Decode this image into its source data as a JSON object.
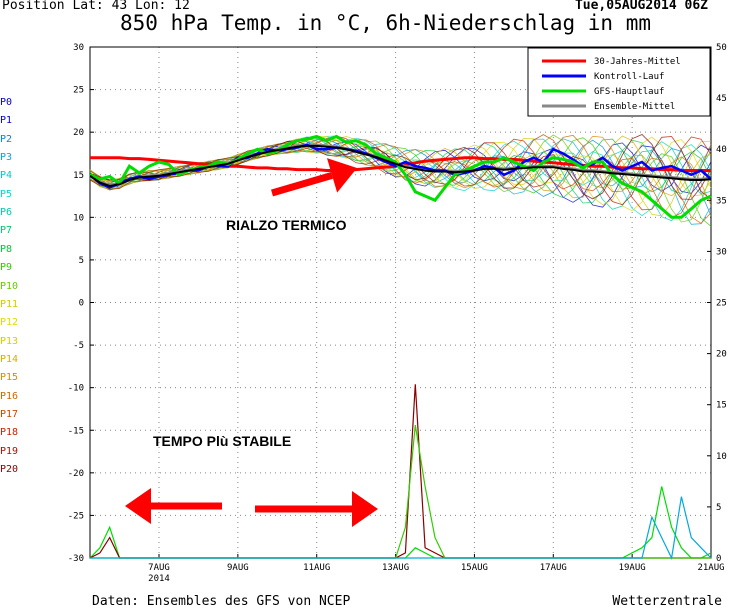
{
  "header": {
    "position": "Position   Lat: 43 Lon: 12",
    "datetime": "Tue,05AUG2014  06Z",
    "title": "850 hPa Temp. in °C, 6h-Niederschlag in mm"
  },
  "footer": {
    "left": "Daten: Ensembles des GFS von NCEP",
    "right": "Wetterzentrale"
  },
  "member_labels": [
    {
      "text": "P0",
      "color": "#0000cc"
    },
    {
      "text": "P1",
      "color": "#0000dd"
    },
    {
      "text": "P2",
      "color": "#0088dd"
    },
    {
      "text": "P3",
      "color": "#00aadd"
    },
    {
      "text": "P4",
      "color": "#00cccc"
    },
    {
      "text": "P5",
      "color": "#00ddcc"
    },
    {
      "text": "P6",
      "color": "#00ccaa"
    },
    {
      "text": "P7",
      "color": "#00cc66"
    },
    {
      "text": "P8",
      "color": "#00cc33"
    },
    {
      "text": "P9",
      "color": "#33cc00"
    },
    {
      "text": "P10",
      "color": "#66cc00"
    },
    {
      "text": "P11",
      "color": "#cccc00"
    },
    {
      "text": "P12",
      "color": "#dddd00"
    },
    {
      "text": "P13",
      "color": "#ddcc00"
    },
    {
      "text": "P14",
      "color": "#ddaa00"
    },
    {
      "text": "P15",
      "color": "#dd8800"
    },
    {
      "text": "P16",
      "color": "#cc6600"
    },
    {
      "text": "P17",
      "color": "#cc4400"
    },
    {
      "text": "P18",
      "color": "#cc2200"
    },
    {
      "text": "P19",
      "color": "#aa1100"
    },
    {
      "text": "P20",
      "color": "#880000"
    }
  ],
  "annotations": {
    "rialzo": "RIALZO TERMICO",
    "stabile": "TEMPO Plù STABILE",
    "arrow_color": "#ff0000"
  },
  "chart_data": {
    "type": "line",
    "x_ticks": [
      "7AUG",
      "9AUG",
      "11AUG",
      "13AUG",
      "15AUG",
      "17AUG",
      "19AUG",
      "21AUG"
    ],
    "x_year_label": "2014",
    "y_left_range": [
      -30,
      30
    ],
    "y_left_ticks": [
      30,
      25,
      20,
      15,
      10,
      5,
      0,
      -5,
      -10,
      -15,
      -20,
      -25,
      -30
    ],
    "y_right_range": [
      0,
      50
    ],
    "y_right_ticks": [
      50,
      45,
      40,
      35,
      30,
      25,
      20,
      15,
      10,
      5,
      0
    ],
    "grid": true,
    "legend_position": "top-right",
    "x_days": [
      5.25,
      5.5,
      5.75,
      6,
      6.25,
      6.5,
      6.75,
      7,
      7.25,
      7.5,
      7.75,
      8,
      8.25,
      8.5,
      8.75,
      9,
      9.25,
      9.5,
      9.75,
      10,
      10.25,
      10.5,
      10.75,
      11,
      11.25,
      11.5,
      11.75,
      12,
      12.25,
      12.5,
      12.75,
      13,
      13.25,
      13.5,
      13.75,
      14,
      14.25,
      14.5,
      14.75,
      15,
      15.25,
      15.5,
      15.75,
      16,
      16.25,
      16.5,
      16.75,
      17,
      17.25,
      17.5,
      17.75,
      18,
      18.25,
      18.5,
      18.75,
      19,
      19.25,
      19.5,
      19.75,
      20,
      20.25,
      20.5,
      20.75,
      21
    ],
    "temperature_series": [
      {
        "name": "30-Jahres-Mittel",
        "color": "#ff0000",
        "width": 3,
        "values": [
          17,
          17,
          17,
          17,
          16.9,
          16.9,
          16.8,
          16.7,
          16.6,
          16.5,
          16.4,
          16.3,
          16.2,
          16.1,
          16,
          16,
          15.9,
          15.8,
          15.8,
          15.7,
          15.7,
          15.6,
          15.6,
          15.6,
          15.5,
          15.5,
          15.5,
          15.6,
          15.7,
          15.8,
          15.9,
          16,
          16.2,
          16.4,
          16.6,
          16.7,
          16.8,
          16.9,
          17,
          17,
          16.9,
          16.9,
          16.8,
          16.8,
          16.7,
          16.6,
          16.5,
          16.4,
          16.3,
          16.2,
          16.1,
          16,
          16,
          15.9,
          15.8,
          15.8,
          15.7,
          15.7,
          15.6,
          15.6,
          15.5,
          15.5,
          15.5,
          15.5
        ]
      },
      {
        "name": "Kontroll-Lauf",
        "color": "#0000ff",
        "width": 2.5,
        "values": [
          15,
          14,
          13.5,
          14,
          14.5,
          14.8,
          14.5,
          14.8,
          15,
          15.2,
          15.5,
          15.5,
          16,
          16,
          16,
          17,
          17,
          17.5,
          18,
          17.8,
          18,
          18.2,
          18.5,
          18,
          18,
          18.2,
          18,
          17.8,
          17.5,
          17,
          16.5,
          16,
          16.5,
          16,
          15.8,
          15.5,
          15.5,
          15,
          15.2,
          15.5,
          16,
          15.8,
          15,
          15.5,
          16.5,
          17,
          16.5,
          18,
          17.5,
          16.8,
          16,
          16.2,
          17,
          16,
          15.5,
          16,
          16.5,
          15.5,
          15.8,
          16,
          15.5,
          15,
          15.5,
          14.5
        ]
      },
      {
        "name": "GFS-Hauptlauf",
        "color": "#00dd00",
        "width": 3,
        "values": [
          15,
          14.5,
          14.8,
          14,
          16,
          15.2,
          16,
          16.5,
          16.2,
          15,
          15.5,
          15.8,
          16,
          16.5,
          16.2,
          16.8,
          17.5,
          18,
          17.5,
          17.8,
          18.5,
          19,
          19.2,
          19.5,
          19,
          19.5,
          18.8,
          19,
          18.5,
          17.5,
          17,
          16.5,
          15,
          13,
          12.5,
          12,
          13.5,
          15,
          15.5,
          16,
          16.5,
          16.5,
          17,
          16.5,
          16,
          15.5,
          16.5,
          17,
          16.8,
          16.5,
          15.8,
          16.5,
          16.5,
          15,
          14,
          13.5,
          13,
          12,
          11,
          10,
          10,
          11,
          12,
          12.5
        ]
      },
      {
        "name": "Ensemble-Mittel",
        "color": "#888888",
        "width": 2.5,
        "values": [
          15,
          14.2,
          13.8,
          14,
          14.5,
          14.8,
          14.9,
          15,
          15.2,
          15.4,
          15.6,
          15.8,
          16,
          16.2,
          16.4,
          16.8,
          17.2,
          17.5,
          17.8,
          18,
          18.2,
          18.4,
          18.5,
          18.5,
          18.4,
          18.3,
          18.1,
          17.8,
          17.5,
          17.2,
          16.8,
          16.4,
          16,
          15.8,
          15.6,
          15.5,
          15.5,
          15.4,
          15.5,
          15.6,
          15.8,
          15.8,
          15.7,
          15.8,
          15.9,
          16,
          16,
          16,
          15.8,
          15.7,
          15.5,
          15.5,
          15.4,
          15.3,
          15.2,
          15.1,
          15,
          14.9,
          14.8,
          14.7,
          14.6,
          14.5,
          14.5,
          14.6
        ]
      }
    ],
    "precipitation_series": [
      {
        "name": "GFS-Hauptlauf",
        "color": "#00dd00",
        "values": [
          0,
          1,
          3,
          0,
          0,
          0,
          0,
          0,
          0,
          0,
          0,
          0,
          0,
          0,
          0,
          0,
          0,
          0,
          0,
          0,
          0,
          0,
          0,
          0,
          0,
          0,
          0,
          0,
          0,
          0,
          0,
          0,
          0,
          1,
          0.5,
          0,
          0,
          0,
          0,
          0,
          0,
          0,
          0,
          0,
          0,
          0,
          0,
          0,
          0,
          0,
          0,
          0,
          0,
          0,
          0,
          0.5,
          1,
          2,
          7,
          3,
          1,
          0,
          0,
          0.5
        ]
      },
      {
        "name": "P20",
        "color": "#880000",
        "values": [
          0,
          0.5,
          2,
          0,
          0,
          0,
          0,
          0,
          0,
          0,
          0,
          0,
          0,
          0,
          0,
          0,
          0,
          0,
          0,
          0,
          0,
          0,
          0,
          0,
          0,
          0,
          0,
          0,
          0,
          0,
          0,
          0,
          0.5,
          17,
          1,
          0.5,
          0,
          0,
          0,
          0,
          0,
          0,
          0,
          0,
          0,
          0,
          0,
          0,
          0,
          0,
          0,
          0,
          0,
          0,
          0,
          0,
          0,
          0,
          0,
          0,
          0,
          0,
          0,
          0
        ]
      },
      {
        "name": "P9",
        "color": "#33cc00",
        "values": [
          0,
          0,
          0,
          0,
          0,
          0,
          0,
          0,
          0,
          0,
          0,
          0,
          0,
          0,
          0,
          0,
          0,
          0,
          0,
          0,
          0,
          0,
          0,
          0,
          0,
          0,
          0,
          0,
          0,
          0,
          0,
          0,
          3,
          13,
          7,
          2,
          0,
          0,
          0,
          0,
          0,
          0,
          0,
          0,
          0,
          0,
          0,
          0,
          0,
          0,
          0,
          0,
          0,
          0,
          0,
          0,
          0,
          0,
          0,
          0,
          0,
          0,
          0,
          0
        ]
      },
      {
        "name": "P3",
        "color": "#00aadd",
        "values": [
          0,
          0,
          0,
          0,
          0,
          0,
          0,
          0,
          0,
          0,
          0,
          0,
          0,
          0,
          0,
          0,
          0,
          0,
          0,
          0,
          0,
          0,
          0,
          0,
          0,
          0,
          0,
          0,
          0,
          0,
          0,
          0,
          0,
          0,
          0,
          0,
          0,
          0,
          0,
          0,
          0,
          0,
          0,
          0,
          0,
          0,
          0,
          0,
          0,
          0,
          0,
          0,
          0,
          0,
          0,
          0,
          0,
          4,
          2,
          0,
          6,
          2,
          1,
          0
        ]
      }
    ]
  }
}
